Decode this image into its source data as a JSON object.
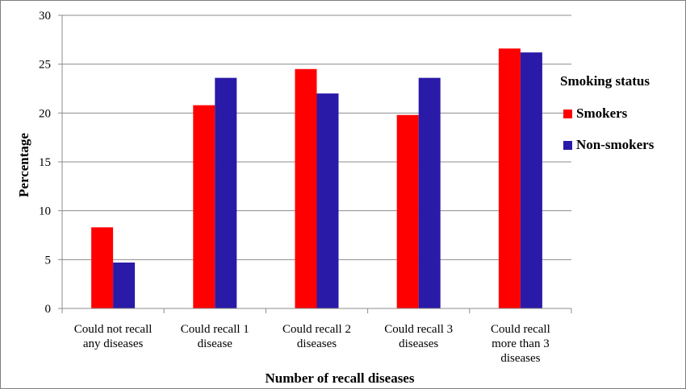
{
  "chart_data": {
    "type": "bar",
    "title": "",
    "xlabel": "Number of recall diseases",
    "ylabel": "Percentage",
    "ylim": [
      0,
      30
    ],
    "yticks": [
      0,
      5,
      10,
      15,
      20,
      25,
      30
    ],
    "grid": true,
    "legend_title": "Smoking status",
    "legend_position": "right",
    "categories": [
      [
        "Could not recall",
        "any diseases"
      ],
      [
        "Could recall 1",
        "disease"
      ],
      [
        "Could recall 2",
        "diseases"
      ],
      [
        "Could recall 3",
        "diseases"
      ],
      [
        "Could recall",
        "more than 3",
        "diseases"
      ]
    ],
    "series": [
      {
        "name": "Smokers",
        "color": "#ff0000",
        "values": [
          8.3,
          20.8,
          24.5,
          19.8,
          26.6
        ]
      },
      {
        "name": "Non-smokers",
        "color": "#2a1aa8",
        "values": [
          4.7,
          23.6,
          22.0,
          23.6,
          26.2
        ]
      }
    ]
  }
}
